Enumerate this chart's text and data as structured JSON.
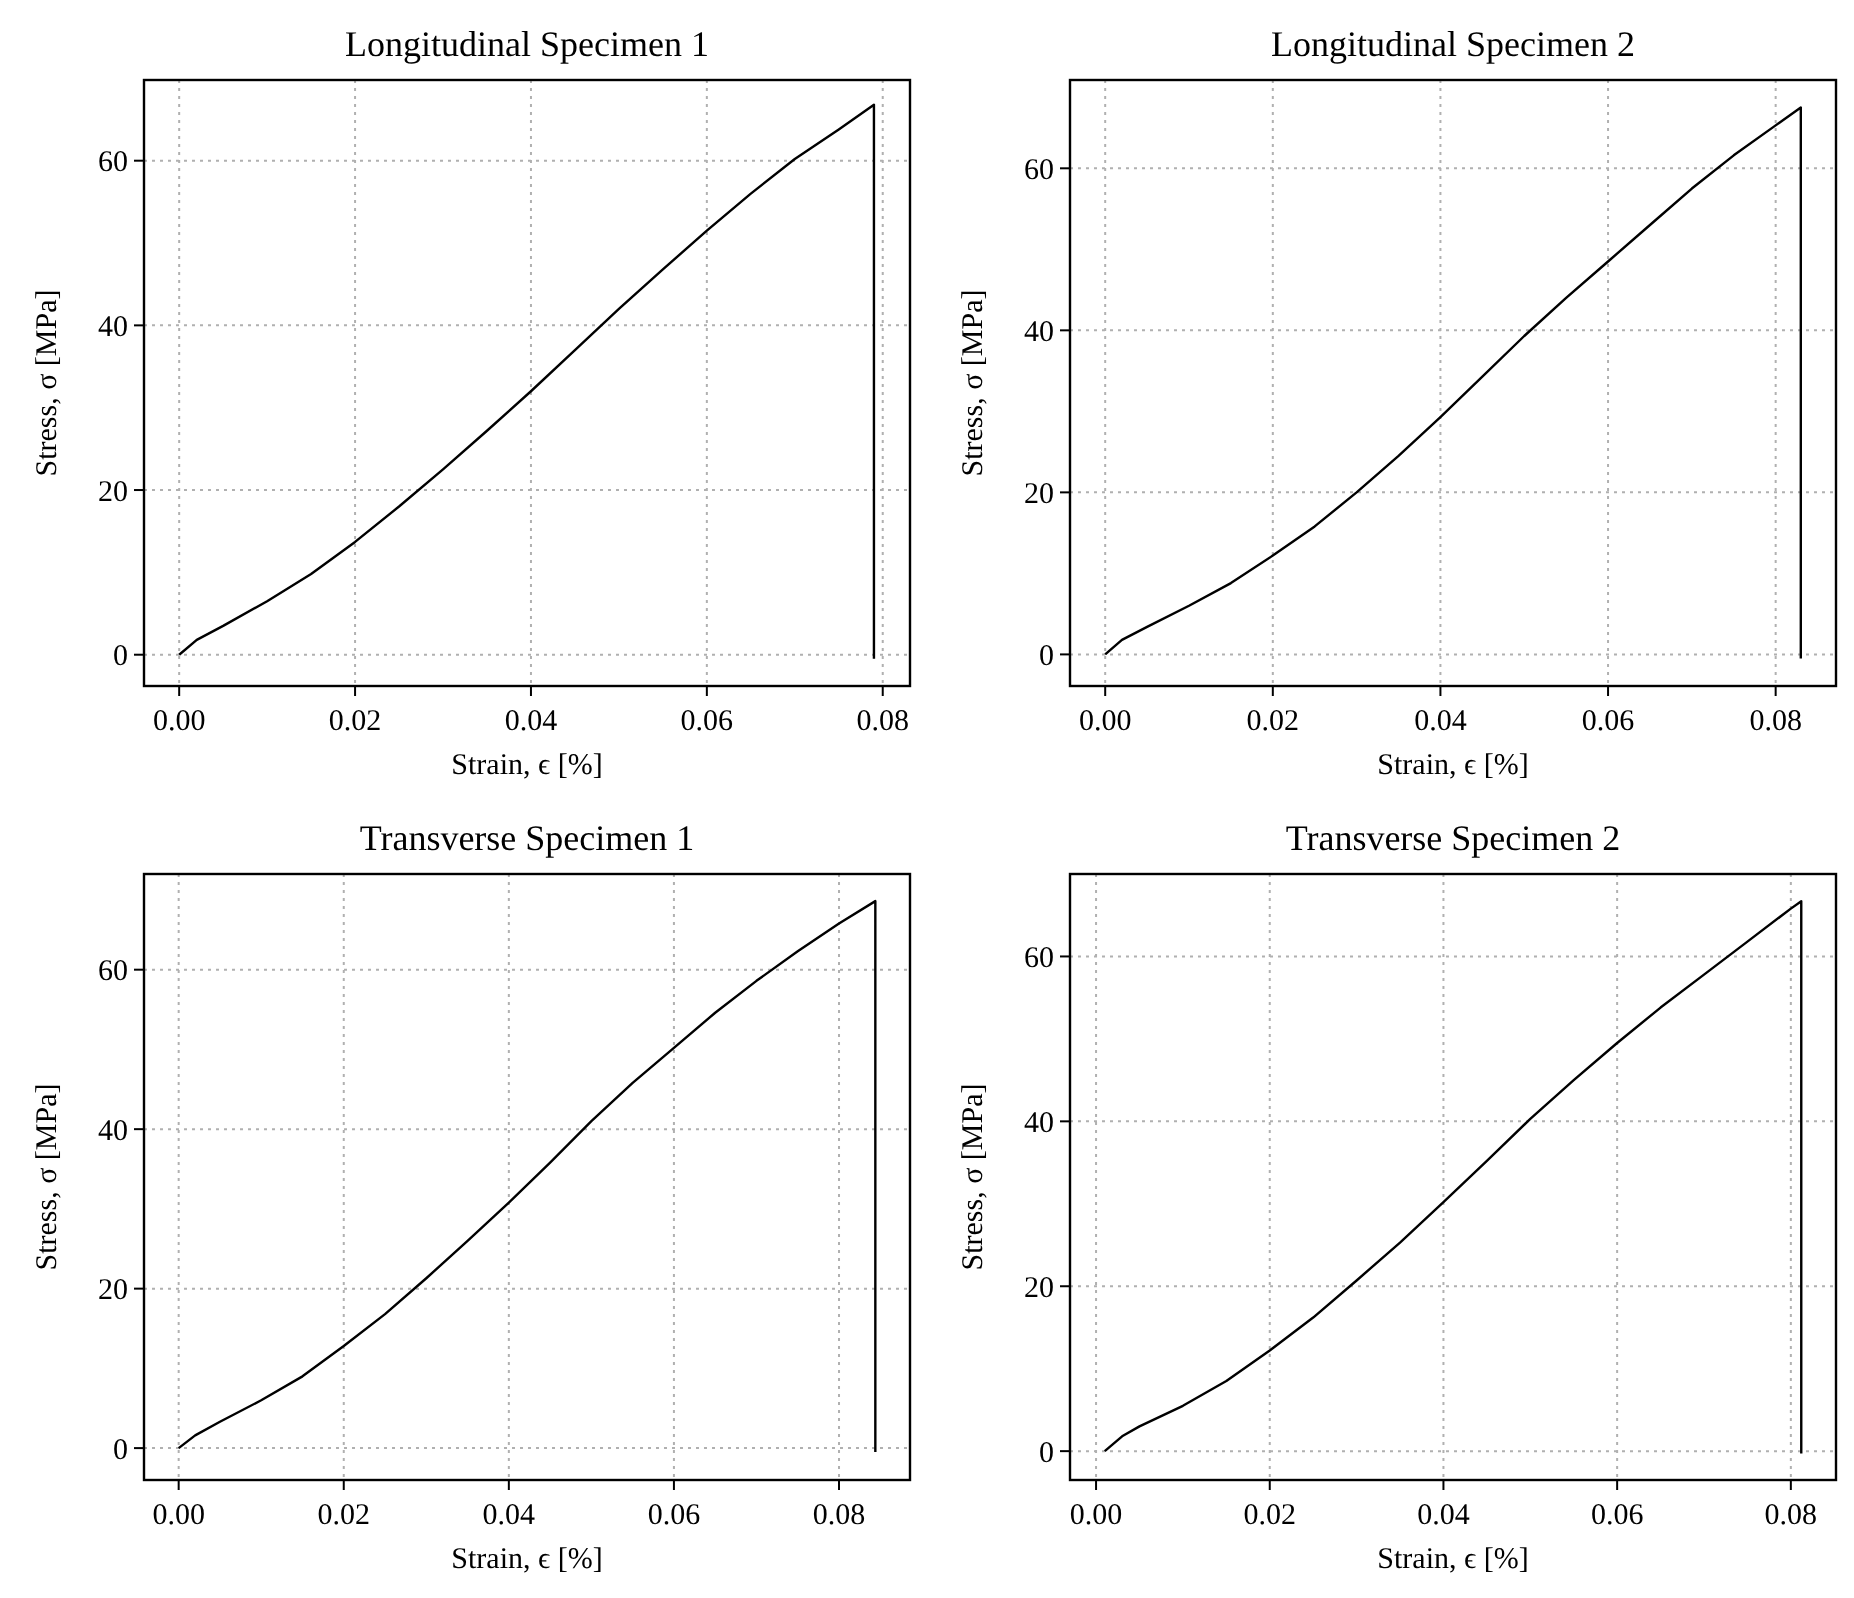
{
  "chart_data": [
    {
      "type": "line",
      "title": "Longitudinal Specimen 1",
      "xlabel": "Strain, ϵ [%]",
      "ylabel": "Stress, σ [MPa]",
      "grid": true,
      "line_style": "solid",
      "xlim": [
        -0.004,
        0.0831
      ],
      "ylim": [
        -3.8,
        69.8
      ],
      "xticks": [
        {
          "value": 0,
          "label": "0.00"
        },
        {
          "value": 0.02,
          "label": "0.02"
        },
        {
          "value": 0.04,
          "label": "0.04"
        },
        {
          "value": 0.06,
          "label": "0.06"
        },
        {
          "value": 0.08,
          "label": "0.08"
        }
      ],
      "yticks": [
        0,
        20,
        40,
        60
      ],
      "series": [
        {
          "color": "#000000",
          "x": [
            0,
            0.002,
            0.005,
            0.01,
            0.015,
            0.02,
            0.025,
            0.03,
            0.035,
            0.04,
            0.045,
            0.05,
            0.055,
            0.06,
            0.065,
            0.07,
            0.075,
            0.079,
            0.079
          ],
          "values": [
            0,
            1.8,
            3.5,
            6.5,
            9.8,
            13.7,
            18,
            22.5,
            27.2,
            32,
            37,
            42,
            46.8,
            51.5,
            56,
            60.2,
            63.8,
            66.8,
            -0.5
          ]
        }
      ]
    },
    {
      "type": "line",
      "title": "Longitudinal Specimen 2",
      "xlabel": "Strain, ϵ [%]",
      "ylabel": "Stress, σ [MPa]",
      "grid": true,
      "line_style": "solid",
      "xlim": [
        -0.0042,
        0.0872
      ],
      "ylim": [
        -3.9,
        70.9
      ],
      "xticks": [
        {
          "value": 0,
          "label": "0.00"
        },
        {
          "value": 0.02,
          "label": "0.02"
        },
        {
          "value": 0.04,
          "label": "0.04"
        },
        {
          "value": 0.06,
          "label": "0.06"
        },
        {
          "value": 0.08,
          "label": "0.08"
        }
      ],
      "yticks": [
        0,
        20,
        40,
        60
      ],
      "series": [
        {
          "color": "#000000",
          "x": [
            0,
            0.002,
            0.005,
            0.01,
            0.015,
            0.02,
            0.025,
            0.03,
            0.035,
            0.04,
            0.045,
            0.05,
            0.055,
            0.06,
            0.065,
            0.07,
            0.075,
            0.08,
            0.083,
            0.083
          ],
          "values": [
            0,
            1.8,
            3.4,
            6,
            8.8,
            12.2,
            15.8,
            20,
            24.5,
            29.3,
            34.3,
            39.3,
            44,
            48.5,
            53,
            57.5,
            61.6,
            65.3,
            67.5,
            -0.5
          ]
        }
      ]
    },
    {
      "type": "line",
      "title": "Transverse Specimen 1",
      "xlabel": "Strain, ϵ [%]",
      "ylabel": "Stress, σ [MPa]",
      "grid": true,
      "line_style": "solid",
      "xlim": [
        -0.0042,
        0.0886
      ],
      "ylim": [
        -4,
        72
      ],
      "xticks": [
        {
          "value": 0,
          "label": "0.00"
        },
        {
          "value": 0.02,
          "label": "0.02"
        },
        {
          "value": 0.04,
          "label": "0.04"
        },
        {
          "value": 0.06,
          "label": "0.06"
        },
        {
          "value": 0.08,
          "label": "0.08"
        }
      ],
      "yticks": [
        0,
        20,
        40,
        60
      ],
      "series": [
        {
          "color": "#000000",
          "x": [
            0,
            0.002,
            0.005,
            0.01,
            0.015,
            0.02,
            0.025,
            0.03,
            0.035,
            0.04,
            0.045,
            0.05,
            0.055,
            0.06,
            0.065,
            0.07,
            0.075,
            0.08,
            0.0844,
            0.0844
          ],
          "values": [
            0,
            1.6,
            3.3,
            6,
            9,
            12.8,
            16.8,
            21.3,
            26,
            30.8,
            35.8,
            41,
            45.8,
            50.2,
            54.6,
            58.6,
            62.3,
            65.8,
            68.6,
            -0.5
          ]
        }
      ]
    },
    {
      "type": "line",
      "title": "Transverse Specimen 2",
      "xlabel": "Strain, ϵ [%]",
      "ylabel": "Stress, σ [MPa]",
      "grid": true,
      "line_style": "solid",
      "xlim": [
        -0.003,
        0.0852
      ],
      "ylim": [
        -3.5,
        70
      ],
      "xticks": [
        {
          "value": 0,
          "label": "0.00"
        },
        {
          "value": 0.02,
          "label": "0.02"
        },
        {
          "value": 0.04,
          "label": "0.04"
        },
        {
          "value": 0.06,
          "label": "0.06"
        },
        {
          "value": 0.08,
          "label": "0.08"
        }
      ],
      "yticks": [
        0,
        20,
        40,
        60
      ],
      "series": [
        {
          "color": "#000000",
          "x": [
            0.001,
            0.003,
            0.005,
            0.01,
            0.015,
            0.02,
            0.025,
            0.03,
            0.035,
            0.04,
            0.045,
            0.05,
            0.055,
            0.06,
            0.065,
            0.07,
            0.075,
            0.08,
            0.0812,
            0.0812
          ],
          "values": [
            0,
            1.8,
            3,
            5.5,
            8.5,
            12.2,
            16.2,
            20.7,
            25.3,
            30.2,
            35.2,
            40.3,
            45,
            49.5,
            53.8,
            57.8,
            61.8,
            65.8,
            66.7,
            -0.3
          ]
        }
      ]
    }
  ]
}
